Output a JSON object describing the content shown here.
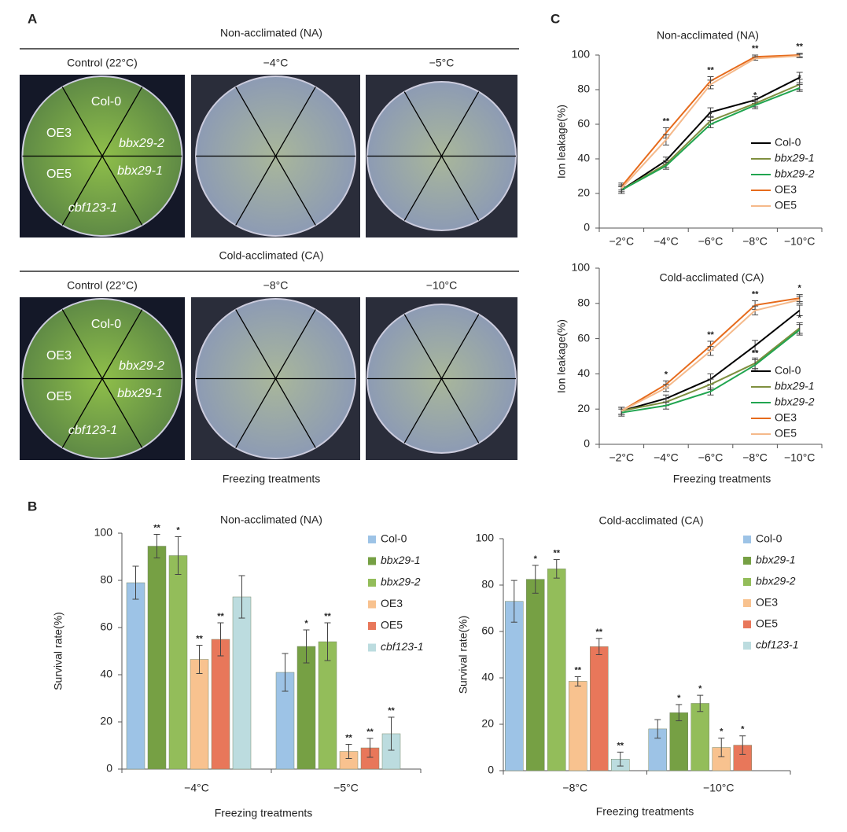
{
  "panel_labels": [
    "A",
    "B",
    "C"
  ],
  "panel_a": {
    "rows": [
      {
        "title": "Non-acclimated (NA)",
        "columns": [
          "Control (22°C)",
          "−4°C",
          "−5°C"
        ]
      },
      {
        "title": "Cold-acclimated (CA)",
        "columns": [
          "Control (22°C)",
          "−8°C",
          "−10°C"
        ]
      }
    ],
    "plate_labels": [
      "Col-0",
      "OE3",
      "bbx29-2",
      "OE5",
      "bbx29-1",
      "cbf123-1"
    ],
    "plate_labels_italic": [
      false,
      false,
      true,
      false,
      true,
      true
    ],
    "xlabel": "Freezing treatments"
  },
  "chart_data": [
    {
      "type": "bar",
      "title": "Non-acclimated (NA)",
      "xlabel": "Freezing treatments",
      "ylabel": "Survival rate(%)",
      "categories": [
        "−4°C",
        "−5°C"
      ],
      "ylim": [
        0,
        100
      ],
      "yticks": [
        0,
        20,
        40,
        60,
        80,
        100
      ],
      "series": [
        {
          "name": "Col-0",
          "color": "#9dc3e6",
          "italic": false,
          "values": [
            79,
            41
          ],
          "errors": [
            7,
            8
          ],
          "significance": [
            null,
            null
          ]
        },
        {
          "name": "bbx29-1",
          "color": "#76a044",
          "italic": true,
          "values": [
            94.5,
            52
          ],
          "errors": [
            5,
            7
          ],
          "significance": [
            "**",
            "*"
          ]
        },
        {
          "name": "bbx29-2",
          "color": "#93bd5a",
          "italic": true,
          "values": [
            90.5,
            54
          ],
          "errors": [
            8,
            8
          ],
          "significance": [
            "*",
            "**"
          ]
        },
        {
          "name": "OE3",
          "color": "#f8c28f",
          "italic": false,
          "values": [
            46.5,
            7.5
          ],
          "errors": [
            6,
            3
          ],
          "significance": [
            "**",
            "**"
          ]
        },
        {
          "name": "OE5",
          "color": "#e8775a",
          "italic": false,
          "values": [
            55,
            9
          ],
          "errors": [
            7,
            4
          ],
          "significance": [
            "**",
            "**"
          ]
        },
        {
          "name": "cbf123-1",
          "color": "#bcdcdf",
          "italic": true,
          "values": [
            73,
            15
          ],
          "errors": [
            9,
            7
          ],
          "significance": [
            null,
            "**"
          ]
        }
      ]
    },
    {
      "type": "bar",
      "title": "Cold-acclimated (CA)",
      "xlabel": "Freezing treatments",
      "ylabel": "Survival rate(%)",
      "categories": [
        "−8°C",
        "−10°C"
      ],
      "ylim": [
        0,
        100
      ],
      "yticks": [
        0,
        20,
        40,
        60,
        80,
        100
      ],
      "series": [
        {
          "name": "Col-0",
          "color": "#9dc3e6",
          "italic": false,
          "values": [
            73,
            18
          ],
          "errors": [
            9,
            4
          ],
          "significance": [
            null,
            null
          ]
        },
        {
          "name": "bbx29-1",
          "color": "#76a044",
          "italic": true,
          "values": [
            82.5,
            25
          ],
          "errors": [
            6,
            3.5
          ],
          "significance": [
            "*",
            "*"
          ]
        },
        {
          "name": "bbx29-2",
          "color": "#93bd5a",
          "italic": true,
          "values": [
            87,
            29
          ],
          "errors": [
            4,
            3.5
          ],
          "significance": [
            "**",
            "*"
          ]
        },
        {
          "name": "OE3",
          "color": "#f8c28f",
          "italic": false,
          "values": [
            38.5,
            10
          ],
          "errors": [
            2,
            4
          ],
          "significance": [
            "**",
            "*"
          ]
        },
        {
          "name": "OE5",
          "color": "#e8775a",
          "italic": false,
          "values": [
            53.5,
            11
          ],
          "errors": [
            3.5,
            4
          ],
          "significance": [
            "**",
            "*"
          ]
        },
        {
          "name": "cbf123-1",
          "color": "#bcdcdf",
          "italic": true,
          "values": [
            5,
            null
          ],
          "errors": [
            3,
            null
          ],
          "significance": [
            "**",
            null
          ]
        }
      ]
    },
    {
      "type": "line",
      "title": "Non-acclimated (NA)",
      "ylabel": "Ion leakage(%)",
      "categories": [
        "−2°C",
        "−4°C",
        "−6°C",
        "−8°C",
        "−10°C"
      ],
      "ylim": [
        0,
        100
      ],
      "yticks": [
        0,
        20,
        40,
        60,
        80,
        100
      ],
      "series": [
        {
          "name": "Col-0",
          "color": "#000000",
          "italic": false,
          "values": [
            22,
            39,
            67,
            74,
            87
          ],
          "errors": [
            2,
            2,
            2.5,
            2,
            3
          ],
          "significance": [
            null,
            null,
            null,
            null,
            null
          ]
        },
        {
          "name": "bbx29-1",
          "color": "#7f8f3f",
          "italic": true,
          "values": [
            22,
            37,
            62,
            72,
            83
          ],
          "errors": [
            2,
            2,
            2,
            2,
            3
          ],
          "significance": [
            null,
            null,
            null,
            null,
            null
          ]
        },
        {
          "name": "bbx29-2",
          "color": "#21a550",
          "italic": true,
          "values": [
            22,
            36,
            60,
            71,
            81
          ],
          "errors": [
            2,
            2,
            2,
            2,
            2
          ],
          "significance": [
            null,
            null,
            "*",
            "*",
            "*"
          ]
        },
        {
          "name": "OE3",
          "color": "#e66b1c",
          "italic": false,
          "values": [
            24,
            55,
            85,
            99,
            100
          ],
          "errors": [
            2,
            3,
            2.5,
            1,
            1
          ],
          "significance": [
            null,
            "**",
            "**",
            "**",
            "**"
          ]
        },
        {
          "name": "OE5",
          "color": "#f5b98a",
          "italic": false,
          "values": [
            23,
            51,
            83,
            98,
            99.5
          ],
          "errors": [
            2,
            3,
            2.5,
            1,
            1
          ],
          "significance": [
            null,
            null,
            null,
            null,
            null
          ]
        }
      ]
    },
    {
      "type": "line",
      "title": "Cold-acclimated (CA)",
      "xlabel": "Freezing treatments",
      "ylabel": "Ion leakage(%)",
      "categories": [
        "−2°C",
        "−4°C",
        "−6°C",
        "−8°C",
        "−10°C"
      ],
      "ylim": [
        0,
        100
      ],
      "yticks": [
        0,
        20,
        40,
        60,
        80,
        100
      ],
      "series": [
        {
          "name": "Col-0",
          "color": "#000000",
          "italic": false,
          "values": [
            19,
            26,
            37,
            56,
            76
          ],
          "errors": [
            2,
            2,
            3,
            3,
            3
          ],
          "significance": [
            null,
            null,
            null,
            null,
            null
          ]
        },
        {
          "name": "bbx29-1",
          "color": "#7f8f3f",
          "italic": true,
          "values": [
            19,
            24,
            34,
            46,
            66
          ],
          "errors": [
            2,
            2,
            3,
            3,
            3
          ],
          "significance": [
            null,
            null,
            null,
            null,
            null
          ]
        },
        {
          "name": "bbx29-2",
          "color": "#21a550",
          "italic": true,
          "values": [
            18,
            22,
            30,
            45,
            65
          ],
          "errors": [
            2,
            2,
            2,
            3,
            3
          ],
          "significance": [
            null,
            null,
            null,
            "**",
            "*"
          ]
        },
        {
          "name": "OE3",
          "color": "#e66b1c",
          "italic": false,
          "values": [
            19,
            34,
            56,
            79,
            83
          ],
          "errors": [
            2,
            2,
            2.5,
            2.5,
            2
          ],
          "significance": [
            null,
            "*",
            "**",
            "**",
            "*"
          ]
        },
        {
          "name": "OE5",
          "color": "#f5b98a",
          "italic": false,
          "values": [
            19,
            32,
            53,
            76,
            82
          ],
          "errors": [
            2,
            2,
            2.5,
            2.5,
            2
          ],
          "significance": [
            null,
            null,
            null,
            null,
            null
          ]
        }
      ]
    }
  ]
}
